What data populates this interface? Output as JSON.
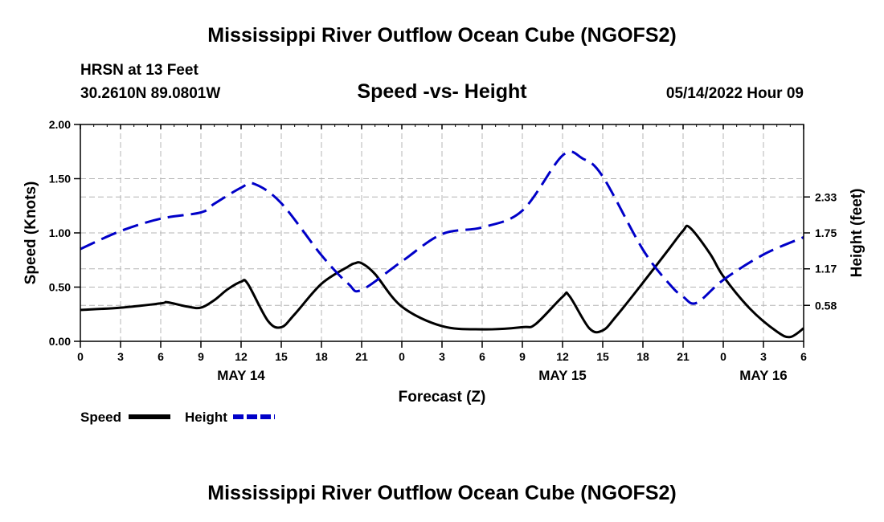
{
  "header": {
    "title": "Mississippi River Outflow Ocean Cube (NGOFS2)",
    "station": "HRSN at 13 Feet",
    "coords": "30.2610N  89.0801W",
    "subtitle": "Speed -vs- Height",
    "datetime": "05/14/2022 Hour 09"
  },
  "footer": {
    "title": "Mississippi River Outflow Ocean Cube (NGOFS2)"
  },
  "chart_data": {
    "type": "line",
    "title": "Speed -vs- Height",
    "xlabel": "Forecast (Z)",
    "ylabel": "Speed (Knots)",
    "y2label": "Height (feet)",
    "xlim": [
      0,
      54
    ],
    "ylim": [
      0,
      2.0
    ],
    "y2lim": [
      0,
      3.5
    ],
    "grid": true,
    "x_ticks": [
      0,
      3,
      6,
      9,
      12,
      15,
      18,
      21,
      24,
      27,
      30,
      33,
      36,
      39,
      42,
      45,
      48,
      51,
      54
    ],
    "x_tick_labels": [
      "0",
      "3",
      "6",
      "9",
      "12",
      "15",
      "18",
      "21",
      "0",
      "3",
      "6",
      "9",
      "12",
      "15",
      "18",
      "21",
      "0",
      "3",
      "6"
    ],
    "y_ticks": [
      0,
      0.5,
      1.0,
      1.5,
      2.0
    ],
    "y_tick_labels": [
      "0.00",
      "0.50",
      "1.00",
      "1.50",
      "2.00"
    ],
    "y2_ticks": [
      0.58,
      1.17,
      1.75,
      2.33
    ],
    "y2_tick_labels": [
      "0.58",
      "1.17",
      "1.75",
      "2.33"
    ],
    "day_labels": [
      {
        "x": 12,
        "label": "MAY 14"
      },
      {
        "x": 36,
        "label": "MAY 15"
      },
      {
        "x": 51,
        "label": "MAY 16"
      }
    ],
    "legend_position": "bottom-left",
    "series": [
      {
        "name": "Speed",
        "axis": "left",
        "color": "#000000",
        "style": "solid",
        "x": [
          0,
          3,
          6,
          6.5,
          8,
          9,
          10,
          11,
          12,
          12.5,
          14,
          15,
          16,
          18,
          20,
          20.5,
          21,
          22,
          24,
          27,
          30,
          33,
          34,
          36,
          36.5,
          38,
          39,
          40,
          42,
          44,
          45,
          45.5,
          47,
          48,
          50,
          52,
          53,
          54
        ],
        "y": [
          0.29,
          0.31,
          0.35,
          0.36,
          0.32,
          0.31,
          0.38,
          0.48,
          0.55,
          0.53,
          0.19,
          0.13,
          0.25,
          0.53,
          0.69,
          0.72,
          0.72,
          0.62,
          0.32,
          0.14,
          0.11,
          0.13,
          0.16,
          0.41,
          0.42,
          0.12,
          0.1,
          0.23,
          0.54,
          0.86,
          1.02,
          1.05,
          0.81,
          0.6,
          0.3,
          0.09,
          0.04,
          0.12
        ]
      },
      {
        "name": "Height",
        "axis": "right",
        "color": "#0000c8",
        "style": "dashed",
        "x": [
          0,
          3,
          6,
          9,
          10,
          12,
          13,
          15,
          18,
          20,
          21,
          24,
          27,
          30,
          33,
          36,
          37.5,
          39,
          42,
          44,
          45,
          46,
          48,
          51,
          54
        ],
        "y": [
          1.49,
          1.78,
          1.98,
          2.08,
          2.22,
          2.48,
          2.54,
          2.23,
          1.39,
          0.93,
          0.83,
          1.29,
          1.73,
          1.84,
          2.11,
          3.0,
          2.95,
          2.66,
          1.48,
          0.92,
          0.72,
          0.62,
          0.99,
          1.4,
          1.68
        ]
      }
    ]
  }
}
